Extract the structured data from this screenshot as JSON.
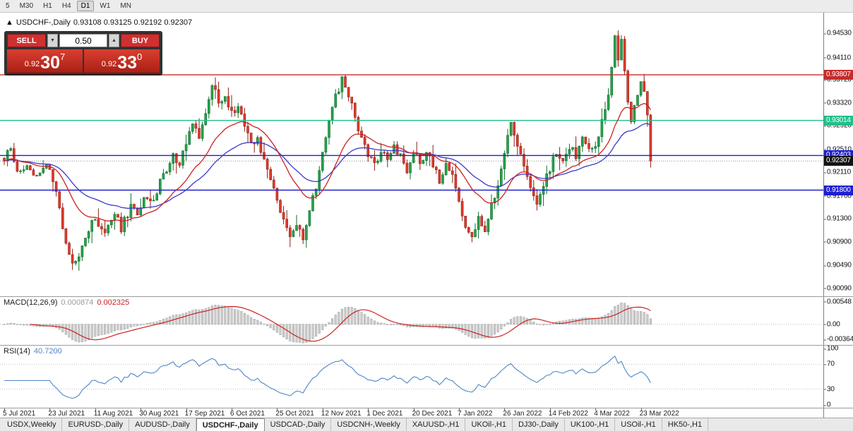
{
  "toolbar": {
    "timeframes": [
      {
        "label": "5",
        "active": false
      },
      {
        "label": "M30",
        "active": false
      },
      {
        "label": "H1",
        "active": false
      },
      {
        "label": "H4",
        "active": false
      },
      {
        "label": "D1",
        "active": true
      },
      {
        "label": "W1",
        "active": false
      },
      {
        "label": "MN",
        "active": false
      }
    ]
  },
  "chart_header": {
    "collapse_icon": "▲",
    "title": "USDCHF-,Daily",
    "ohlc": "0.93108 0.93125 0.92192 0.92307"
  },
  "trade_panel": {
    "sell_label": "SELL",
    "buy_label": "BUY",
    "volume": "0.50",
    "icons": {
      "down": "▼",
      "up": "▲"
    },
    "sell_price": {
      "prefix": "0.92",
      "big": "30",
      "sup": "7"
    },
    "buy_price": {
      "prefix": "0.92",
      "big": "33",
      "sup": "0"
    }
  },
  "indicators": {
    "macd": {
      "label": "MACD(12,26,9)",
      "value_main": "0.000874",
      "value_signal": "0.002325"
    },
    "rsi": {
      "label": "RSI(14)",
      "value": "40.7200"
    }
  },
  "axes": {
    "price_labels": [
      "0.94530",
      "0.94110",
      "0.93720",
      "0.93320",
      "0.92920",
      "0.92510",
      "0.92110",
      "0.91700",
      "0.91300",
      "0.90900",
      "0.90490",
      "0.90090"
    ],
    "macd_labels": [
      {
        "text": "0.00548",
        "value": 0.00548
      },
      {
        "text": "0.00",
        "value": 0
      },
      {
        "text": "-0.00364",
        "value": -0.00364
      }
    ],
    "rsi_labels": [
      {
        "text": "100",
        "value": 100
      },
      {
        "text": "70",
        "value": 70
      },
      {
        "text": "30",
        "value": 30
      },
      {
        "text": "0",
        "value": 0
      }
    ],
    "dates": [
      "5 Jul 2021",
      "23 Jul 2021",
      "11 Aug 2021",
      "30 Aug 2021",
      "17 Sep 2021",
      "6 Oct 2021",
      "25 Oct 2021",
      "12 Nov 2021",
      "1 Dec 2021",
      "20 Dec 2021",
      "7 Jan 2022",
      "26 Jan 2022",
      "14 Feb 2022",
      "4 Mar 2022",
      "23 Mar 2022"
    ],
    "bars_per_date": 14
  },
  "levels": [
    {
      "price": 0.93807,
      "text": "0.93807",
      "color": "#c62b2b",
      "style": "solid"
    },
    {
      "price": 0.93014,
      "text": "0.93014",
      "color": "#22c08c",
      "style": "solid"
    },
    {
      "price": 0.92403,
      "text": "0.92403",
      "color": "#1f1fd0",
      "style": "solid"
    },
    {
      "price": 0.92307,
      "text": "0.92307",
      "color": "#141414",
      "style": "dotted",
      "is_current": true
    },
    {
      "price": 0.918,
      "text": "0.91800",
      "color": "#1f1fd0",
      "style": "solid"
    }
  ],
  "chart_data": {
    "type": "candlestick",
    "title": "USDCHF-,Daily",
    "symbol": "USDCHF-",
    "timeframe": "Daily",
    "bars": 200,
    "price_range": [
      0.8995,
      0.9489
    ],
    "last_candle": {
      "open": 0.93108,
      "high": 0.93125,
      "low": 0.92192,
      "close": 0.92307
    },
    "close_waypoints": [
      [
        0,
        0.9235
      ],
      [
        2,
        0.9252
      ],
      [
        4,
        0.9212
      ],
      [
        7,
        0.9222
      ],
      [
        10,
        0.9206
      ],
      [
        13,
        0.9228
      ],
      [
        15,
        0.9198
      ],
      [
        17,
        0.9142
      ],
      [
        19,
        0.9082
      ],
      [
        21,
        0.9052
      ],
      [
        23,
        0.9062
      ],
      [
        25,
        0.9098
      ],
      [
        28,
        0.9132
      ],
      [
        31,
        0.9108
      ],
      [
        34,
        0.9138
      ],
      [
        36,
        0.9114
      ],
      [
        39,
        0.9152
      ],
      [
        41,
        0.9138
      ],
      [
        44,
        0.9172
      ],
      [
        46,
        0.9158
      ],
      [
        48,
        0.9196
      ],
      [
        50,
        0.9214
      ],
      [
        52,
        0.9242
      ],
      [
        54,
        0.9224
      ],
      [
        56,
        0.9258
      ],
      [
        58,
        0.9302
      ],
      [
        60,
        0.9272
      ],
      [
        62,
        0.9318
      ],
      [
        64,
        0.9366
      ],
      [
        66,
        0.9332
      ],
      [
        68,
        0.9348
      ],
      [
        70,
        0.9312
      ],
      [
        72,
        0.9332
      ],
      [
        74,
        0.9288
      ],
      [
        76,
        0.9258
      ],
      [
        78,
        0.9272
      ],
      [
        80,
        0.9232
      ],
      [
        82,
        0.9198
      ],
      [
        84,
        0.9162
      ],
      [
        86,
        0.9132
      ],
      [
        88,
        0.9102
      ],
      [
        90,
        0.9122
      ],
      [
        92,
        0.9092
      ],
      [
        94,
        0.9142
      ],
      [
        96,
        0.9186
      ],
      [
        98,
        0.9252
      ],
      [
        100,
        0.9302
      ],
      [
        102,
        0.9344
      ],
      [
        104,
        0.9372
      ],
      [
        106,
        0.9342
      ],
      [
        108,
        0.9308
      ],
      [
        110,
        0.9272
      ],
      [
        112,
        0.9238
      ],
      [
        114,
        0.9222
      ],
      [
        116,
        0.9252
      ],
      [
        118,
        0.9232
      ],
      [
        120,
        0.9262
      ],
      [
        122,
        0.9236
      ],
      [
        124,
        0.9212
      ],
      [
        126,
        0.9246
      ],
      [
        128,
        0.9226
      ],
      [
        130,
        0.9252
      ],
      [
        132,
        0.9222
      ],
      [
        134,
        0.9196
      ],
      [
        136,
        0.9232
      ],
      [
        138,
        0.9202
      ],
      [
        140,
        0.9162
      ],
      [
        142,
        0.9118
      ],
      [
        144,
        0.9092
      ],
      [
        146,
        0.9136
      ],
      [
        148,
        0.9112
      ],
      [
        150,
        0.9152
      ],
      [
        152,
        0.9188
      ],
      [
        154,
        0.9242
      ],
      [
        156,
        0.9296
      ],
      [
        158,
        0.9262
      ],
      [
        160,
        0.9218
      ],
      [
        162,
        0.9178
      ],
      [
        164,
        0.9152
      ],
      [
        166,
        0.9188
      ],
      [
        168,
        0.9218
      ],
      [
        170,
        0.9248
      ],
      [
        172,
        0.9228
      ],
      [
        174,
        0.9258
      ],
      [
        176,
        0.9238
      ],
      [
        178,
        0.9268
      ],
      [
        180,
        0.9248
      ],
      [
        182,
        0.9262
      ],
      [
        184,
        0.9296
      ],
      [
        186,
        0.9352
      ],
      [
        187,
        0.9398
      ],
      [
        188,
        0.9442
      ],
      [
        189,
        0.9412
      ],
      [
        190,
        0.9436
      ],
      [
        191,
        0.9382
      ],
      [
        192,
        0.9332
      ],
      [
        193,
        0.9306
      ],
      [
        194,
        0.9332
      ],
      [
        195,
        0.9352
      ],
      [
        196,
        0.9374
      ],
      [
        197,
        0.9352
      ],
      [
        198,
        0.93108
      ],
      [
        199,
        0.92307
      ]
    ],
    "forced_highs": [
      [
        189,
        0.9458
      ],
      [
        190,
        0.9445
      ],
      [
        197,
        0.93807
      ]
    ],
    "forced_lows": [
      [
        21,
        0.9041
      ],
      [
        92,
        0.9086
      ],
      [
        144,
        0.9089
      ]
    ],
    "ma_fast_period": 20,
    "ma_slow_period": 40,
    "macd": {
      "fast": 12,
      "slow": 26,
      "signal": 9,
      "range": [
        -0.005,
        0.0066
      ]
    },
    "rsi": {
      "period": 14,
      "range": [
        0,
        100
      ],
      "levels": [
        70,
        30
      ]
    },
    "colors": {
      "up": "#27a24b",
      "up_border": "#0f6e2c",
      "down": "#e23b2c",
      "down_border": "#8f1f13",
      "ma_fast": "#cc2222",
      "ma_slow": "#3a3ac8",
      "macd_hist": "#cdcdcd",
      "macd_hist_border": "#9b9b9b",
      "macd_signal": "#cc2222",
      "rsi_line": "#4f86c6"
    }
  },
  "tabs": {
    "items": [
      {
        "label": "USDX,Weekly",
        "active": false
      },
      {
        "label": "EURUSD-,Daily",
        "active": false
      },
      {
        "label": "AUDUSD-,Daily",
        "active": false
      },
      {
        "label": "USDCHF-,Daily",
        "active": true
      },
      {
        "label": "USDCAD-,Daily",
        "active": false
      },
      {
        "label": "USDCNH-,Weekly",
        "active": false
      },
      {
        "label": "XAUUSD-,H1",
        "active": false
      },
      {
        "label": "UKOil-,H1",
        "active": false
      },
      {
        "label": "DJ30-,Daily",
        "active": false
      },
      {
        "label": "UK100-,H1",
        "active": false
      },
      {
        "label": "USOil-,H1",
        "active": false
      },
      {
        "label": "HK50-,H1",
        "active": false
      }
    ]
  }
}
